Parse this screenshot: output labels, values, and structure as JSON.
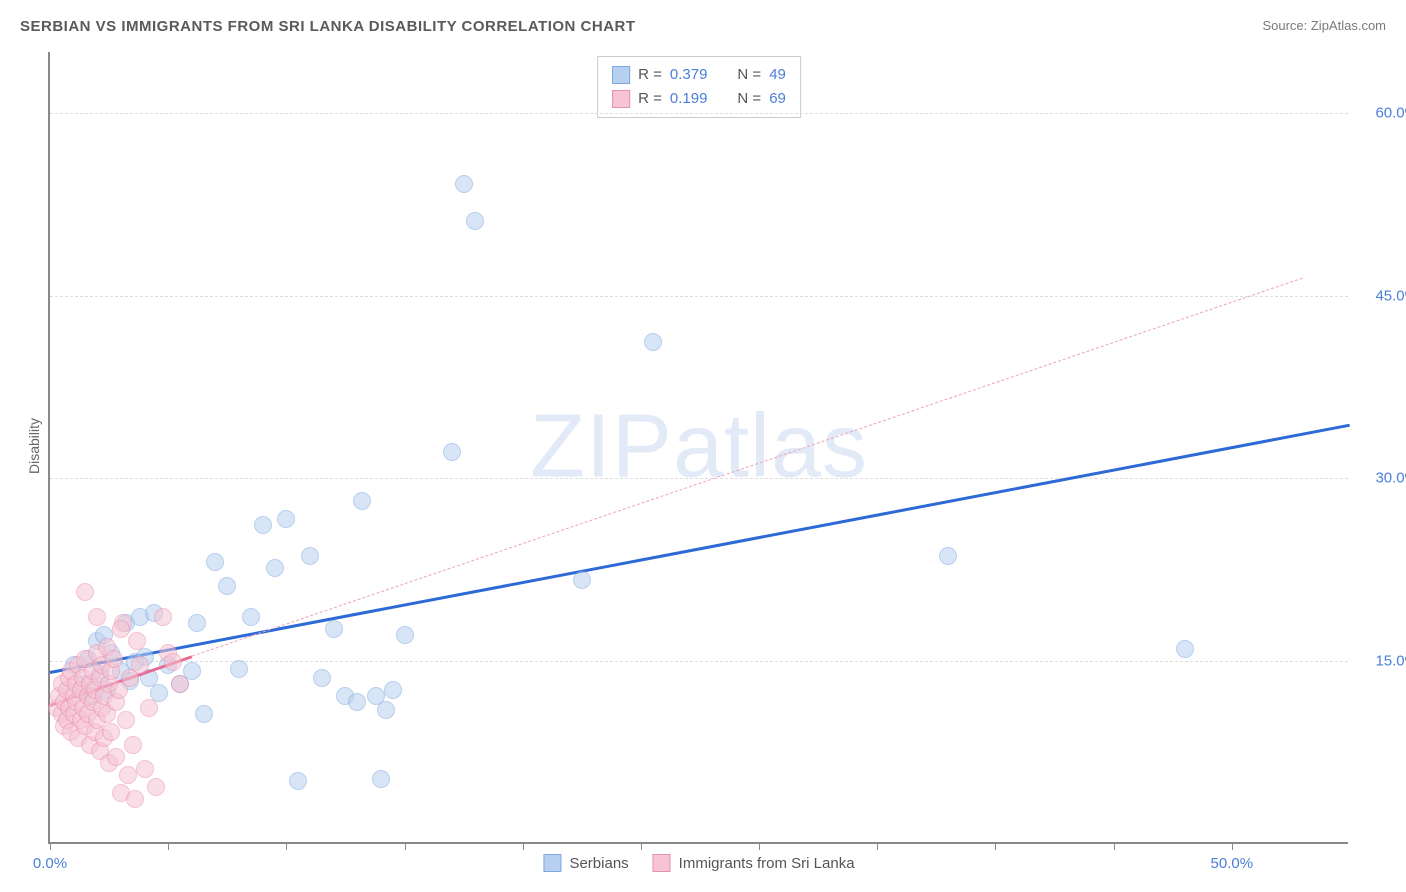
{
  "title": "SERBIAN VS IMMIGRANTS FROM SRI LANKA DISABILITY CORRELATION CHART",
  "source": "Source: ZipAtlas.com",
  "ylabel": "Disability",
  "watermark_a": "ZIP",
  "watermark_b": "atlas",
  "chart": {
    "type": "scatter",
    "xlim": [
      0,
      55
    ],
    "ylim": [
      0,
      65
    ],
    "xtick_positions": [
      0,
      5,
      10,
      15,
      20,
      25,
      30,
      35,
      40,
      45,
      50
    ],
    "xtick_labels": {
      "0": "0.0%",
      "50": "50.0%"
    },
    "ytick_positions": [
      15,
      30,
      45,
      60
    ],
    "ytick_labels": [
      "15.0%",
      "30.0%",
      "45.0%",
      "60.0%"
    ],
    "grid_color": "#dddddd",
    "axis_color": "#888888",
    "background_color": "#ffffff",
    "marker_radius": 9,
    "marker_opacity": 0.55
  },
  "series": [
    {
      "name": "Serbians",
      "color_fill": "#b8d0f0",
      "color_stroke": "#7fa8e0",
      "R": "0.379",
      "N": "49",
      "trend": {
        "x1": 0,
        "y1": 14.2,
        "x2": 55,
        "y2": 34.5,
        "style": "solid",
        "color": "#2d6ad6",
        "width": 3
      },
      "points": [
        [
          1.0,
          14.5
        ],
        [
          1.4,
          13.0
        ],
        [
          1.6,
          15.0
        ],
        [
          1.8,
          12.0
        ],
        [
          2.0,
          16.5
        ],
        [
          2.1,
          13.8
        ],
        [
          2.3,
          17.0
        ],
        [
          2.4,
          12.5
        ],
        [
          2.6,
          15.5
        ],
        [
          3.0,
          14.0
        ],
        [
          3.2,
          18.0
        ],
        [
          3.4,
          13.2
        ],
        [
          3.6,
          14.8
        ],
        [
          3.8,
          18.5
        ],
        [
          4.0,
          15.2
        ],
        [
          4.2,
          13.5
        ],
        [
          4.4,
          18.8
        ],
        [
          4.6,
          12.2
        ],
        [
          5.0,
          14.5
        ],
        [
          5.5,
          13.0
        ],
        [
          6.0,
          14.0
        ],
        [
          6.2,
          18.0
        ],
        [
          6.5,
          10.5
        ],
        [
          7.0,
          23.0
        ],
        [
          7.5,
          21.0
        ],
        [
          8.0,
          14.2
        ],
        [
          8.5,
          18.5
        ],
        [
          9.0,
          26.0
        ],
        [
          9.5,
          22.5
        ],
        [
          10.0,
          26.5
        ],
        [
          10.5,
          5.0
        ],
        [
          11.0,
          23.5
        ],
        [
          11.5,
          13.5
        ],
        [
          12.0,
          17.5
        ],
        [
          12.5,
          12.0
        ],
        [
          13.0,
          11.5
        ],
        [
          13.2,
          28.0
        ],
        [
          13.8,
          12.0
        ],
        [
          14.0,
          5.2
        ],
        [
          14.2,
          10.8
        ],
        [
          14.5,
          12.5
        ],
        [
          15.0,
          17.0
        ],
        [
          17.0,
          32.0
        ],
        [
          18.0,
          51.0
        ],
        [
          17.5,
          54.0
        ],
        [
          22.5,
          21.5
        ],
        [
          25.5,
          41.0
        ],
        [
          38.0,
          23.5
        ],
        [
          48.0,
          15.8
        ]
      ]
    },
    {
      "name": "Immigrants from Sri Lanka",
      "color_fill": "#f6c4d2",
      "color_stroke": "#ea8fb0",
      "R": "0.199",
      "N": "69",
      "trend": {
        "x1": 0,
        "y1": 11.5,
        "x2": 53,
        "y2": 46.5,
        "style": "dashed",
        "color": "#eaa4bb",
        "width": 1.5
      },
      "trend_solid": {
        "x1": 0,
        "y1": 11.5,
        "x2": 6,
        "y2": 15.5,
        "color": "#e56b94",
        "width": 3
      },
      "points": [
        [
          0.3,
          11.0
        ],
        [
          0.4,
          12.0
        ],
        [
          0.5,
          10.5
        ],
        [
          0.5,
          13.0
        ],
        [
          0.6,
          11.5
        ],
        [
          0.6,
          9.5
        ],
        [
          0.7,
          12.5
        ],
        [
          0.7,
          10.0
        ],
        [
          0.8,
          13.5
        ],
        [
          0.8,
          11.0
        ],
        [
          0.9,
          14.0
        ],
        [
          0.9,
          9.0
        ],
        [
          1.0,
          12.0
        ],
        [
          1.0,
          10.5
        ],
        [
          1.1,
          13.0
        ],
        [
          1.1,
          11.5
        ],
        [
          1.2,
          14.5
        ],
        [
          1.2,
          8.5
        ],
        [
          1.3,
          12.5
        ],
        [
          1.3,
          10.0
        ],
        [
          1.4,
          13.5
        ],
        [
          1.4,
          11.0
        ],
        [
          1.5,
          15.0
        ],
        [
          1.5,
          9.5
        ],
        [
          1.6,
          12.0
        ],
        [
          1.6,
          10.5
        ],
        [
          1.7,
          13.0
        ],
        [
          1.7,
          8.0
        ],
        [
          1.8,
          14.0
        ],
        [
          1.8,
          11.5
        ],
        [
          1.9,
          12.5
        ],
        [
          1.9,
          9.0
        ],
        [
          2.0,
          15.5
        ],
        [
          2.0,
          10.0
        ],
        [
          2.1,
          13.5
        ],
        [
          2.1,
          7.5
        ],
        [
          2.2,
          14.5
        ],
        [
          2.2,
          11.0
        ],
        [
          2.3,
          12.0
        ],
        [
          2.3,
          8.5
        ],
        [
          2.4,
          16.0
        ],
        [
          2.4,
          10.5
        ],
        [
          2.5,
          13.0
        ],
        [
          2.5,
          6.5
        ],
        [
          2.6,
          14.0
        ],
        [
          2.6,
          9.0
        ],
        [
          2.7,
          15.0
        ],
        [
          2.8,
          11.5
        ],
        [
          2.8,
          7.0
        ],
        [
          2.9,
          12.5
        ],
        [
          3.0,
          4.0
        ],
        [
          3.1,
          18.0
        ],
        [
          3.2,
          10.0
        ],
        [
          3.3,
          5.5
        ],
        [
          3.4,
          13.5
        ],
        [
          3.5,
          8.0
        ],
        [
          3.6,
          3.5
        ],
        [
          3.8,
          14.5
        ],
        [
          4.0,
          6.0
        ],
        [
          4.2,
          11.0
        ],
        [
          4.5,
          4.5
        ],
        [
          1.5,
          20.5
        ],
        [
          3.0,
          17.5
        ],
        [
          4.8,
          18.5
        ],
        [
          5.0,
          15.5
        ],
        [
          5.2,
          14.8
        ],
        [
          5.5,
          13.0
        ],
        [
          3.7,
          16.5
        ],
        [
          2.0,
          18.5
        ]
      ]
    }
  ],
  "legend_top_labels": {
    "R": "R =",
    "N": "N ="
  },
  "legend_bottom": [
    "Serbians",
    "Immigrants from Sri Lanka"
  ]
}
